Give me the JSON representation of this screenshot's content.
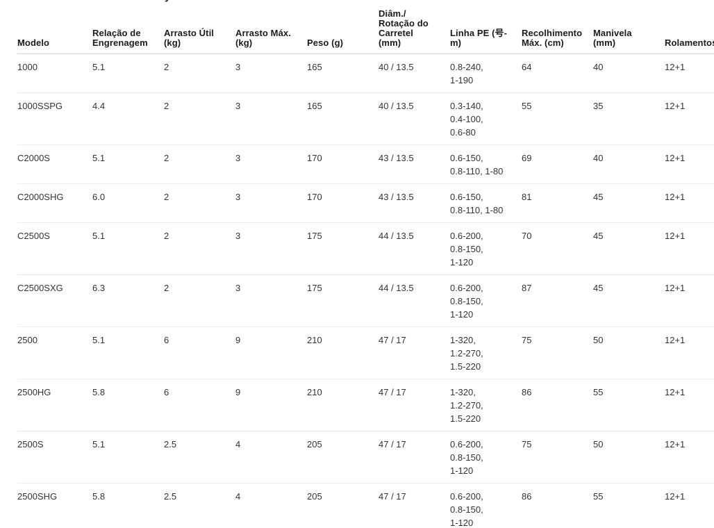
{
  "page": {
    "clipped_text_fragment": "y"
  },
  "colors": {
    "background": "#ffffff",
    "header_text": "#1a1a1a",
    "body_text": "#333333",
    "header_border": "#d0d0d0",
    "row_border": "#ededed"
  },
  "table": {
    "columns": [
      {
        "key": "modelo",
        "label": "Modelo"
      },
      {
        "key": "relacao-de-engrenagem",
        "label": "Relação de\nEngrenagem"
      },
      {
        "key": "arrasto-util",
        "label": "Arrasto Útil\n(kg)"
      },
      {
        "key": "arrasto-max",
        "label": "Arrasto Máx.\n(kg)"
      },
      {
        "key": "peso",
        "label": "Peso (g)"
      },
      {
        "key": "diam-rotacao-carretel",
        "label": "Diâm./\nRotação do\nCarretel\n(mm)"
      },
      {
        "key": "linha-pe",
        "label": "Linha PE (号-\nm)"
      },
      {
        "key": "recolhimento-max",
        "label": "Recolhimento\nMáx. (cm)"
      },
      {
        "key": "manivela",
        "label": "Manivela\n(mm)"
      },
      {
        "key": "rolamentos",
        "label": "Rolamentos"
      }
    ],
    "rows": [
      [
        "1000",
        "5.1",
        "2",
        "3",
        "165",
        "40 / 13.5",
        "0.8-240,\n1-190",
        "64",
        "40",
        "12+1"
      ],
      [
        "1000SSPG",
        "4.4",
        "2",
        "3",
        "165",
        "40 / 13.5",
        "0.3-140,\n0.4-100,\n0.6-80",
        "55",
        "35",
        "12+1"
      ],
      [
        "C2000S",
        "5.1",
        "2",
        "3",
        "170",
        "43 / 13.5",
        "0.6-150,\n0.8-110, 1-80",
        "69",
        "40",
        "12+1"
      ],
      [
        "C2000SHG",
        "6.0",
        "2",
        "3",
        "170",
        "43 / 13.5",
        "0.6-150,\n0.8-110, 1-80",
        "81",
        "45",
        "12+1"
      ],
      [
        "C2500S",
        "5.1",
        "2",
        "3",
        "175",
        "44 / 13.5",
        "0.6-200,\n0.8-150,\n1-120",
        "70",
        "45",
        "12+1"
      ],
      [
        "C2500SXG",
        "6.3",
        "2",
        "3",
        "175",
        "44 / 13.5",
        "0.6-200,\n0.8-150,\n1-120",
        "87",
        "45",
        "12+1"
      ],
      [
        "2500",
        "5.1",
        "6",
        "9",
        "210",
        "47 / 17",
        "1-320,\n1.2-270,\n1.5-220",
        "75",
        "50",
        "12+1"
      ],
      [
        "2500HG",
        "5.8",
        "6",
        "9",
        "210",
        "47 / 17",
        "1-320,\n1.2-270,\n1.5-220",
        "86",
        "55",
        "12+1"
      ],
      [
        "2500S",
        "5.1",
        "2.5",
        "4",
        "205",
        "47 / 17",
        "0.6-200,\n0.8-150,\n1-120",
        "75",
        "50",
        "12+1"
      ],
      [
        "2500SHG",
        "5.8",
        "2.5",
        "4",
        "205",
        "47 / 17",
        "0.6-200,\n0.8-150,\n1-120",
        "86",
        "55",
        "12+1"
      ]
    ]
  }
}
